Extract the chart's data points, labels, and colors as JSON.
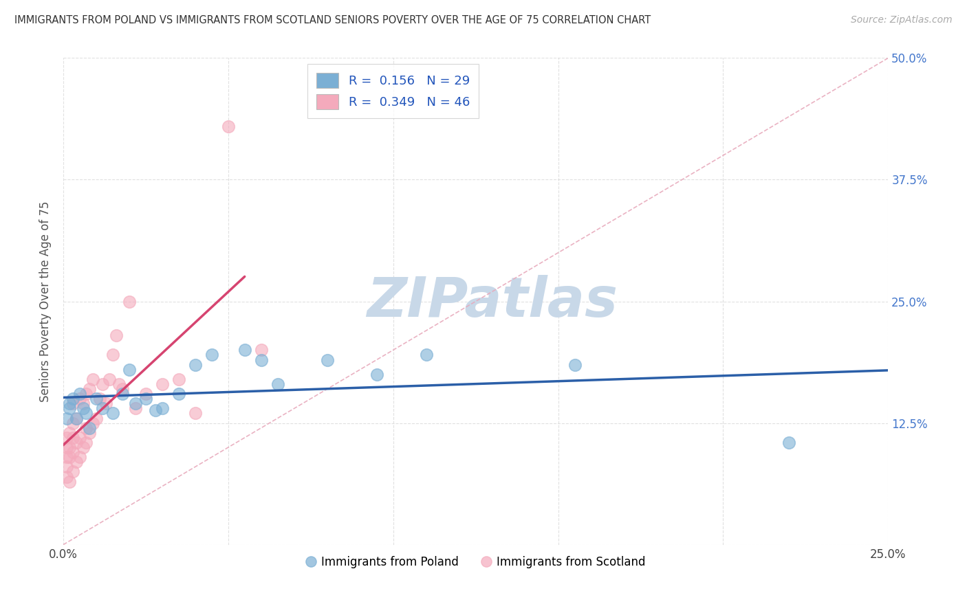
{
  "title": "IMMIGRANTS FROM POLAND VS IMMIGRANTS FROM SCOTLAND SENIORS POVERTY OVER THE AGE OF 75 CORRELATION CHART",
  "source": "Source: ZipAtlas.com",
  "ylabel": "Seniors Poverty Over the Age of 75",
  "xlim": [
    0.0,
    0.25
  ],
  "ylim": [
    0.0,
    0.5
  ],
  "xticks": [
    0.0,
    0.05,
    0.1,
    0.15,
    0.2,
    0.25
  ],
  "yticks": [
    0.0,
    0.125,
    0.25,
    0.375,
    0.5
  ],
  "xticklabels": [
    "0.0%",
    "",
    "",
    "",
    "",
    "25.0%"
  ],
  "yticklabels": [
    "",
    "12.5%",
    "25.0%",
    "37.5%",
    "50.0%"
  ],
  "legend1_label": "R =  0.156   N = 29",
  "legend2_label": "R =  0.349   N = 46",
  "legend_bottom": "Immigrants from Poland",
  "legend_bottom2": "Immigrants from Scotland",
  "blue_color": "#7BAFD4",
  "pink_color": "#F4AABC",
  "blue_line_color": "#2B5FA8",
  "pink_line_color": "#D64470",
  "diag_line_color": "#E8AABC",
  "watermark_color": "#C8D8E8",
  "poland_x": [
    0.001,
    0.002,
    0.002,
    0.003,
    0.004,
    0.005,
    0.006,
    0.007,
    0.008,
    0.01,
    0.012,
    0.015,
    0.018,
    0.02,
    0.022,
    0.025,
    0.028,
    0.03,
    0.035,
    0.04,
    0.045,
    0.055,
    0.06,
    0.065,
    0.08,
    0.095,
    0.11,
    0.155,
    0.22
  ],
  "poland_y": [
    0.13,
    0.14,
    0.145,
    0.15,
    0.13,
    0.155,
    0.14,
    0.135,
    0.12,
    0.15,
    0.14,
    0.135,
    0.155,
    0.18,
    0.145,
    0.15,
    0.138,
    0.14,
    0.155,
    0.185,
    0.195,
    0.2,
    0.19,
    0.165,
    0.19,
    0.175,
    0.195,
    0.185,
    0.105
  ],
  "scotland_x": [
    0.001,
    0.001,
    0.001,
    0.001,
    0.001,
    0.002,
    0.002,
    0.002,
    0.002,
    0.003,
    0.003,
    0.003,
    0.003,
    0.003,
    0.004,
    0.004,
    0.004,
    0.005,
    0.005,
    0.005,
    0.006,
    0.006,
    0.007,
    0.007,
    0.007,
    0.008,
    0.008,
    0.009,
    0.009,
    0.01,
    0.011,
    0.012,
    0.013,
    0.014,
    0.015,
    0.016,
    0.017,
    0.018,
    0.02,
    0.022,
    0.025,
    0.03,
    0.035,
    0.04,
    0.05,
    0.06
  ],
  "scotland_y": [
    0.07,
    0.08,
    0.09,
    0.1,
    0.11,
    0.065,
    0.09,
    0.1,
    0.115,
    0.075,
    0.095,
    0.11,
    0.125,
    0.145,
    0.085,
    0.105,
    0.13,
    0.09,
    0.11,
    0.15,
    0.1,
    0.145,
    0.105,
    0.12,
    0.155,
    0.115,
    0.16,
    0.125,
    0.17,
    0.13,
    0.15,
    0.165,
    0.145,
    0.17,
    0.195,
    0.215,
    0.165,
    0.16,
    0.25,
    0.14,
    0.155,
    0.165,
    0.17,
    0.135,
    0.43,
    0.2
  ]
}
